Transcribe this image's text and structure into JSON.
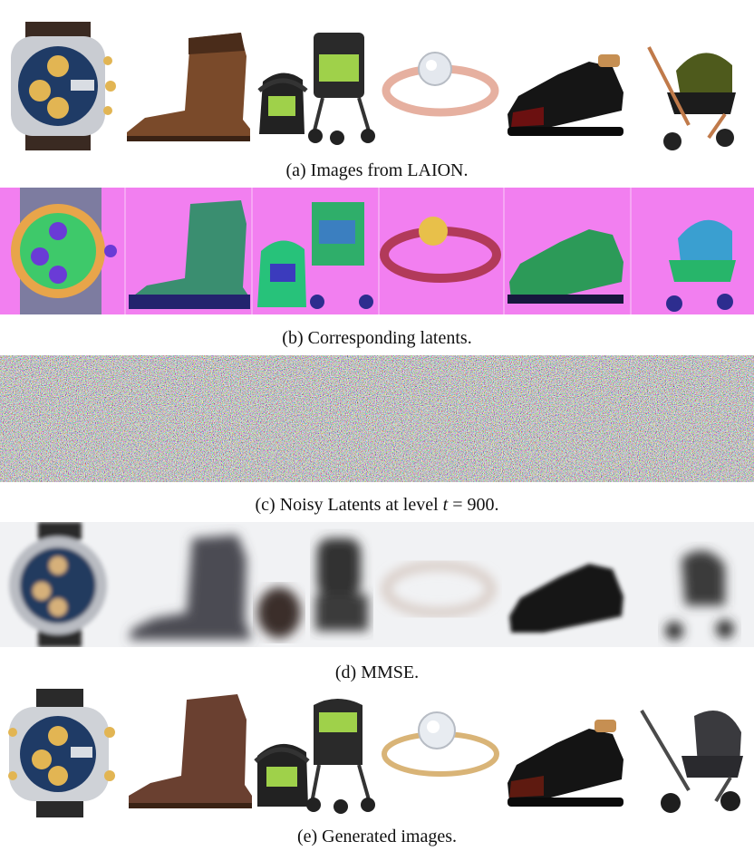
{
  "figure": {
    "rows": [
      {
        "id": "a",
        "caption": "(a) Images from LAION.",
        "style": "product-photos"
      },
      {
        "id": "b",
        "caption": "(b) Corresponding latents.",
        "style": "latents"
      },
      {
        "id": "c",
        "caption_prefix": "(c) Noisy Latents at level ",
        "caption_var": "t",
        "caption_suffix": " = 900.",
        "style": "noise"
      },
      {
        "id": "d",
        "caption": "(d) MMSE.",
        "style": "blurred"
      },
      {
        "id": "e",
        "caption": "(e) Generated images.",
        "style": "product-photos"
      }
    ],
    "objects": [
      "watch-icon",
      "boot-icon",
      "car-seat-icon",
      "stroller-icon",
      "ring-icon",
      "dress-shoe-icon",
      "pram-icon"
    ],
    "colors": {
      "latent_background": "#f27ff0",
      "latent_green": "#3ec96a",
      "latent_purple": "#6a3bd6",
      "watch_dial": "#1f3b66",
      "watch_gold": "#e2b553",
      "boot_brown": "#7a4a2a",
      "seat_green": "#9fd14a",
      "ring_rosegold": "#e6b0a0",
      "shoe_black": "#151515",
      "shoe_red": "#6b1010",
      "pram_olive": "#4e5a1c"
    }
  }
}
